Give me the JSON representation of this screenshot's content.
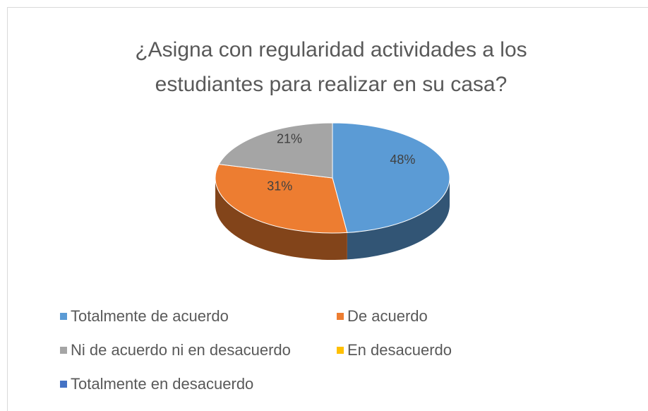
{
  "chart_data": {
    "type": "pie",
    "title": "¿Asigna con regularidad actividades a los estudiantes para realizar en su casa?",
    "categories": [
      "Totalmente de acuerdo",
      "De acuerdo",
      "Ni de acuerdo ni en desacuerdo",
      "En desacuerdo",
      "Totalmente en desacuerdo"
    ],
    "values": [
      48,
      31,
      21,
      0,
      0
    ],
    "value_labels": [
      "48%",
      "31%",
      "21%",
      null,
      null
    ],
    "colors": [
      "#5b9bd5",
      "#ed7d31",
      "#a5a5a5",
      "#ffc000",
      "#4472c4"
    ],
    "legend": "bottom"
  }
}
